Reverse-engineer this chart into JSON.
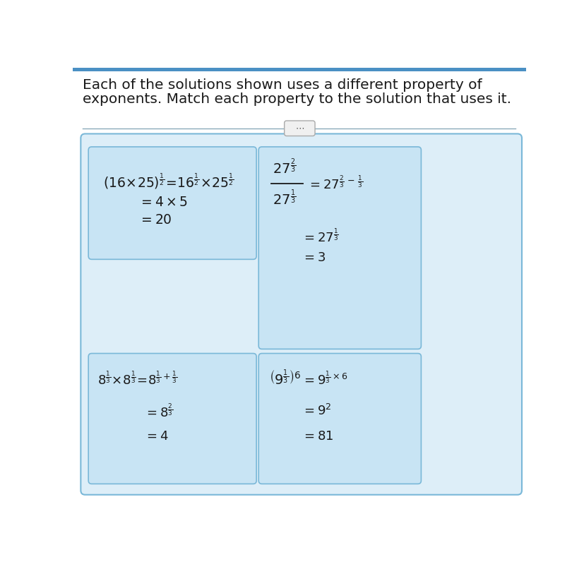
{
  "title_line1": "Each of the solutions shown uses a different property of",
  "title_line2": "exponents. Match each property to the solution that uses it.",
  "title_fontsize": 14.5,
  "title_color": "#1a1a1a",
  "header_bar_color": "#4a90c4",
  "bg_color": "#ffffff",
  "outer_box_bg": "#ddeef8",
  "outer_box_border": "#7ab8d8",
  "inner_box_bg": "#c8e4f4",
  "inner_box_border": "#7ab8d8",
  "divider_color": "#8aaabb",
  "dots_button_color": "#f0f0f0",
  "dots_button_border": "#aaaaaa",
  "text_color": "#1a1a1a",
  "math_fontsize": 13
}
